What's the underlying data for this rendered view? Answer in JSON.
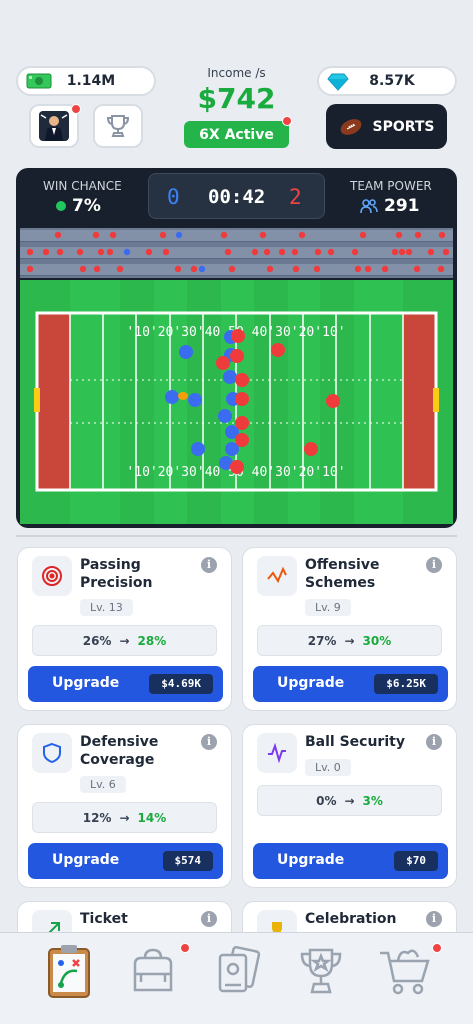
{
  "header": {
    "cash": "1.14M",
    "gems": "8.57K",
    "income_label": "Income /s",
    "income_value": "$742",
    "active_label": "6X Active",
    "sports_label": "SPORTS"
  },
  "game": {
    "win_chance_label": "WIN CHANCE",
    "win_chance_value": "7%",
    "team_power_label": "TEAM POWER",
    "team_power_value": "291",
    "score_left": "0",
    "clock": "00:42",
    "score_right": "2",
    "yard_numbers": "'10'20'30'40 50 40'30'20'10'"
  },
  "upgrades": [
    {
      "title": "Passing\nPrecision",
      "icon": "target-icon",
      "level": "Lv. 13",
      "from": "26%",
      "to": "28%",
      "button": "Upgrade",
      "price": "$4.69K"
    },
    {
      "title": "Offensive\nSchemes",
      "icon": "scheme-icon",
      "level": "Lv. 9",
      "from": "27%",
      "to": "30%",
      "button": "Upgrade",
      "price": "$6.25K"
    },
    {
      "title": "Defensive\nCoverage",
      "icon": "shield-icon",
      "level": "Lv. 6",
      "from": "12%",
      "to": "14%",
      "button": "Upgrade",
      "price": "$574"
    },
    {
      "title": "Ball Security",
      "icon": "pulse-icon",
      "level": "Lv. 0",
      "from": "0%",
      "to": "3%",
      "button": "Upgrade",
      "price": "$70"
    },
    {
      "title": "Ticket",
      "icon": "ticket-icon"
    },
    {
      "title": "Celebration",
      "icon": "trophy-icon"
    }
  ],
  "nav": [
    "playbook-icon",
    "bag-icon",
    "cards-icon",
    "trophy-icon",
    "cart-icon"
  ],
  "colors": {
    "accent": "#2357e0",
    "green": "#1aab3e",
    "dark": "#17202c",
    "red_team": "#ef3b3b",
    "blue_team": "#3b6cf0"
  }
}
